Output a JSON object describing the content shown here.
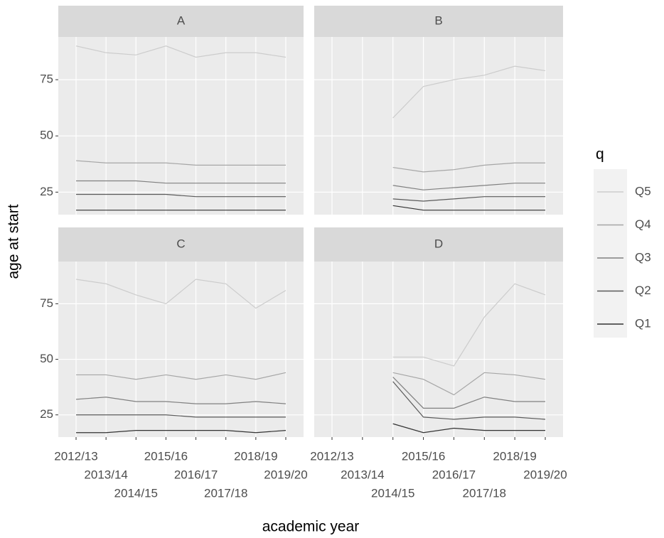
{
  "x_label": "academic year",
  "y_label": "age at start",
  "legend_title": "q",
  "chart_data": [
    {
      "type": "line",
      "title": "A",
      "categories": [
        "2012/13",
        "2013/14",
        "2014/15",
        "2015/16",
        "2016/17",
        "2017/18",
        "2018/19",
        "2019/20"
      ],
      "ylim": [
        15,
        94
      ],
      "yticks": [
        25,
        50,
        75
      ],
      "grid": true,
      "series": [
        {
          "name": "Q5",
          "color": "#cccccc",
          "values": [
            90,
            87,
            86,
            90,
            85,
            87,
            87,
            85
          ]
        },
        {
          "name": "Q4",
          "color": "#a6a6a6",
          "values": [
            39,
            38,
            38,
            38,
            37,
            37,
            37,
            37
          ]
        },
        {
          "name": "Q3",
          "color": "#808080",
          "values": [
            30,
            30,
            30,
            29,
            29,
            29,
            29,
            29
          ]
        },
        {
          "name": "Q2",
          "color": "#5a5a5a",
          "values": [
            24,
            24,
            24,
            24,
            23,
            23,
            23,
            23
          ]
        },
        {
          "name": "Q1",
          "color": "#333333",
          "values": [
            17,
            17,
            17,
            17,
            17,
            17,
            17,
            17
          ]
        }
      ]
    },
    {
      "type": "line",
      "title": "B",
      "categories": [
        "2012/13",
        "2013/14",
        "2014/15",
        "2015/16",
        "2016/17",
        "2017/18",
        "2018/19",
        "2019/20"
      ],
      "ylim": [
        15,
        94
      ],
      "yticks": [
        25,
        50,
        75
      ],
      "grid": true,
      "series": [
        {
          "name": "Q5",
          "color": "#cccccc",
          "values": [
            null,
            null,
            58,
            72,
            75,
            77,
            81,
            79
          ]
        },
        {
          "name": "Q4",
          "color": "#a6a6a6",
          "values": [
            null,
            null,
            36,
            34,
            35,
            37,
            38,
            38
          ]
        },
        {
          "name": "Q3",
          "color": "#808080",
          "values": [
            null,
            null,
            28,
            26,
            27,
            28,
            29,
            29
          ]
        },
        {
          "name": "Q2",
          "color": "#5a5a5a",
          "values": [
            null,
            null,
            22,
            21,
            22,
            23,
            23,
            23
          ]
        },
        {
          "name": "Q1",
          "color": "#333333",
          "values": [
            null,
            null,
            19,
            17,
            17,
            17,
            17,
            17
          ]
        }
      ]
    },
    {
      "type": "line",
      "title": "C",
      "categories": [
        "2012/13",
        "2013/14",
        "2014/15",
        "2015/16",
        "2016/17",
        "2017/18",
        "2018/19",
        "2019/20"
      ],
      "ylim": [
        15,
        94
      ],
      "yticks": [
        25,
        50,
        75
      ],
      "grid": true,
      "series": [
        {
          "name": "Q5",
          "color": "#cccccc",
          "values": [
            86,
            84,
            79,
            75,
            86,
            84,
            73,
            81
          ]
        },
        {
          "name": "Q4",
          "color": "#a6a6a6",
          "values": [
            43,
            43,
            41,
            43,
            41,
            43,
            41,
            44
          ]
        },
        {
          "name": "Q3",
          "color": "#808080",
          "values": [
            32,
            33,
            31,
            31,
            30,
            30,
            31,
            30
          ]
        },
        {
          "name": "Q2",
          "color": "#5a5a5a",
          "values": [
            25,
            25,
            25,
            25,
            24,
            24,
            24,
            24
          ]
        },
        {
          "name": "Q1",
          "color": "#333333",
          "values": [
            17,
            17,
            18,
            18,
            18,
            18,
            17,
            18
          ]
        }
      ]
    },
    {
      "type": "line",
      "title": "D",
      "categories": [
        "2012/13",
        "2013/14",
        "2014/15",
        "2015/16",
        "2016/17",
        "2017/18",
        "2018/19",
        "2019/20"
      ],
      "ylim": [
        15,
        94
      ],
      "yticks": [
        25,
        50,
        75
      ],
      "grid": true,
      "series": [
        {
          "name": "Q5",
          "color": "#cccccc",
          "values": [
            null,
            null,
            51,
            51,
            47,
            69,
            84,
            79
          ]
        },
        {
          "name": "Q4",
          "color": "#a6a6a6",
          "values": [
            null,
            null,
            44,
            41,
            34,
            44,
            43,
            41
          ]
        },
        {
          "name": "Q3",
          "color": "#808080",
          "values": [
            null,
            null,
            42,
            28,
            28,
            33,
            31,
            31
          ]
        },
        {
          "name": "Q2",
          "color": "#5a5a5a",
          "values": [
            null,
            null,
            40,
            24,
            23,
            24,
            24,
            23
          ]
        },
        {
          "name": "Q1",
          "color": "#333333",
          "values": [
            null,
            null,
            21,
            17,
            19,
            18,
            18,
            18
          ]
        }
      ]
    }
  ]
}
